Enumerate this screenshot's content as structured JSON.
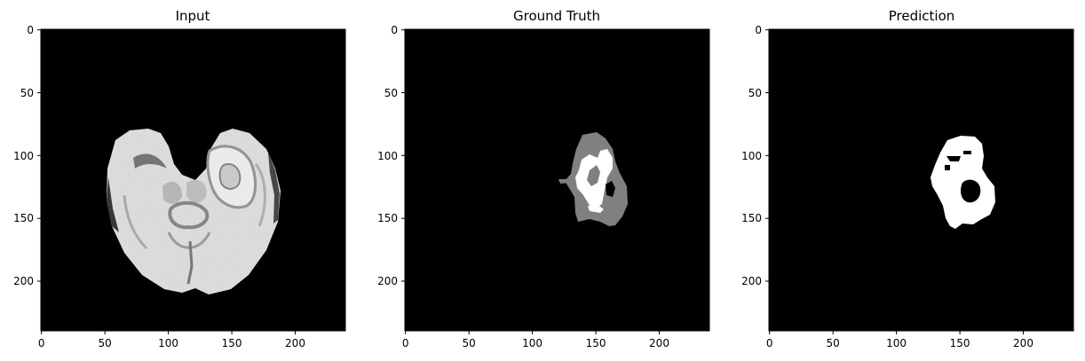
{
  "panels": [
    {
      "title": "Input",
      "kind": "mri-slice",
      "xticks": [
        "0",
        "50",
        "100",
        "150",
        "200"
      ],
      "yticks": [
        "0",
        "50",
        "100",
        "150",
        "200"
      ]
    },
    {
      "title": "Ground Truth",
      "kind": "segmentation-mask",
      "xticks": [
        "0",
        "50",
        "100",
        "150",
        "200"
      ],
      "yticks": [
        "0",
        "50",
        "100",
        "150",
        "200"
      ]
    },
    {
      "title": "Prediction",
      "kind": "binary-mask",
      "xticks": [
        "0",
        "50",
        "100",
        "150",
        "200"
      ],
      "yticks": [
        "0",
        "50",
        "100",
        "150",
        "200"
      ]
    }
  ],
  "image_size": [
    240,
    240
  ],
  "tick_values": [
    0,
    50,
    100,
    150,
    200
  ],
  "colors": {
    "background": "#000000",
    "tissue_light": "#e6e6e6",
    "tissue_dark": "#8a8a8a",
    "mask_gray": "#808080",
    "mask_white": "#ffffff"
  }
}
